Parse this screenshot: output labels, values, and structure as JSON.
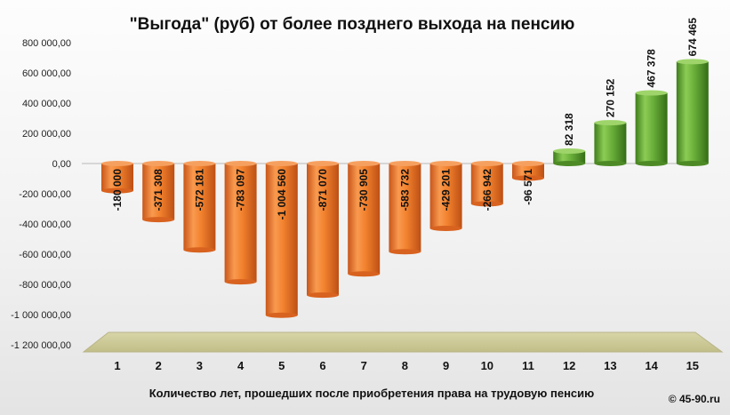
{
  "chart_data": {
    "type": "bar",
    "title": "\"Выгода\"  (руб) от более позднего  выхода на пенсию",
    "xlabel": "Количество лет, прошедших после приобретения права на трудовую пенсию",
    "ylabel": "",
    "categories": [
      "1",
      "2",
      "3",
      "4",
      "5",
      "6",
      "7",
      "8",
      "9",
      "10",
      "11",
      "12",
      "13",
      "14",
      "15"
    ],
    "values": [
      -180000,
      -371308,
      -572181,
      -783097,
      -1004560,
      -871070,
      -730905,
      -583732,
      -429201,
      -266942,
      -96571,
      82318,
      270152,
      467378,
      674465
    ],
    "value_labels": [
      "-180 000",
      "-371 308",
      "-572 181",
      "-783 097",
      "-1 004 560",
      "-871 070",
      "-730 905",
      "-583 732",
      "-429 201",
      "-266 942",
      "-96 571",
      "82 318",
      "270  152",
      "467 378",
      "674 465"
    ],
    "y_ticks": [
      "800 000,00",
      "600 000,00",
      "400 000,00",
      "200 000,00",
      "0,00",
      "-200 000,00",
      "-400 000,00",
      "-600 000,00",
      "-800 000,00",
      "-1 000 000,00",
      "-1 200 000,00"
    ],
    "ylim": [
      -1200000,
      800000
    ],
    "negative_color": "#f07a25",
    "positive_color": "#5c9e2e",
    "floor_color": "#cfcc9c",
    "grid": false,
    "legend": "none"
  },
  "copyright": "© 45-90.ru"
}
